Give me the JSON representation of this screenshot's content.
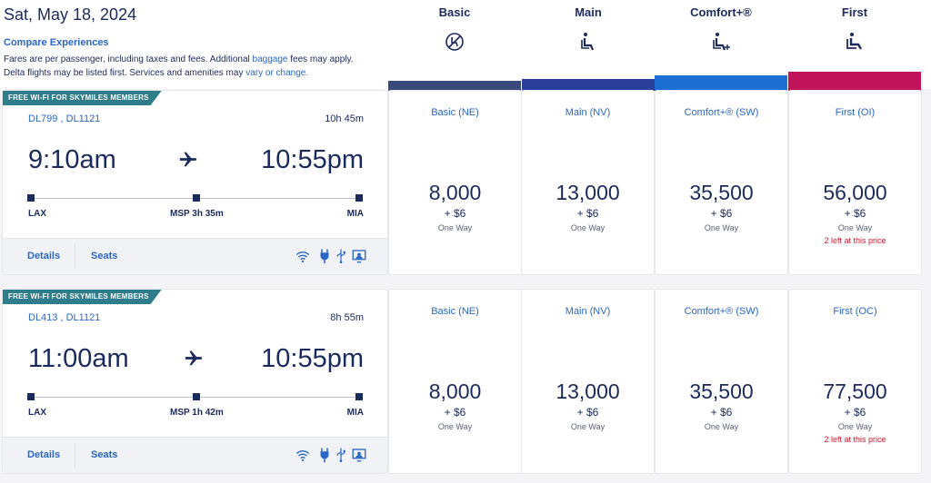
{
  "header": {
    "date": "Sat, May 18, 2024",
    "compare_link": "Compare Experiences",
    "disclaimer_a": "Fares are per passenger, including taxes and fees. Additional ",
    "disclaimer_link1": "baggage",
    "disclaimer_b": " fees may apply. Delta flights may be listed first. Services and amenities may ",
    "disclaimer_link2": "vary or change."
  },
  "cabins": [
    {
      "name": "Basic",
      "icon": "no-seat-selection-icon",
      "color": "#3a4a7e"
    },
    {
      "name": "Main",
      "icon": "seat-icon",
      "color": "#2b3f9a"
    },
    {
      "name": "Comfort+®",
      "icon": "seat-plus-icon",
      "color": "#1c6ed2"
    },
    {
      "name": "First",
      "icon": "first-seat-icon",
      "color": "#c0135a"
    }
  ],
  "flights": [
    {
      "banner": "FREE WI-FI FOR SKYMILES MEMBERS",
      "flight_numbers": "DL799 ,  DL1121",
      "duration": "10h 45m",
      "depart_time": "9:10am",
      "arrive_time": "10:55pm",
      "origin": "LAX",
      "layover": "MSP 3h 35m",
      "destination": "MIA",
      "details_label": "Details",
      "seats_label": "Seats",
      "fares": [
        {
          "class": "Basic (NE)",
          "miles": "8,000",
          "fee": "+ $6",
          "trip": "One Way",
          "seats_left": ""
        },
        {
          "class": "Main (NV)",
          "miles": "13,000",
          "fee": "+ $6",
          "trip": "One Way",
          "seats_left": ""
        },
        {
          "class": "Comfort+® (SW)",
          "miles": "35,500",
          "fee": "+ $6",
          "trip": "One Way",
          "seats_left": ""
        },
        {
          "class": "First (OI)",
          "miles": "56,000",
          "fee": "+ $6",
          "trip": "One Way",
          "seats_left": "2 left at this price"
        }
      ]
    },
    {
      "banner": "FREE WI-FI FOR SKYMILES MEMBERS",
      "flight_numbers": "DL413 ,  DL1121",
      "duration": "8h 55m",
      "depart_time": "11:00am",
      "arrive_time": "10:55pm",
      "origin": "LAX",
      "layover": "MSP 1h 42m",
      "destination": "MIA",
      "details_label": "Details",
      "seats_label": "Seats",
      "fares": [
        {
          "class": "Basic (NE)",
          "miles": "8,000",
          "fee": "+ $6",
          "trip": "One Way",
          "seats_left": ""
        },
        {
          "class": "Main (NV)",
          "miles": "13,000",
          "fee": "+ $6",
          "trip": "One Way",
          "seats_left": ""
        },
        {
          "class": "Comfort+® (SW)",
          "miles": "35,500",
          "fee": "+ $6",
          "trip": "One Way",
          "seats_left": ""
        },
        {
          "class": "First (OC)",
          "miles": "77,500",
          "fee": "+ $6",
          "trip": "One Way",
          "seats_left": "2 left at this price"
        }
      ]
    }
  ],
  "amenities": [
    "wifi-icon",
    "power-outlet-icon",
    "usb-icon",
    "entertainment-screen-icon"
  ]
}
